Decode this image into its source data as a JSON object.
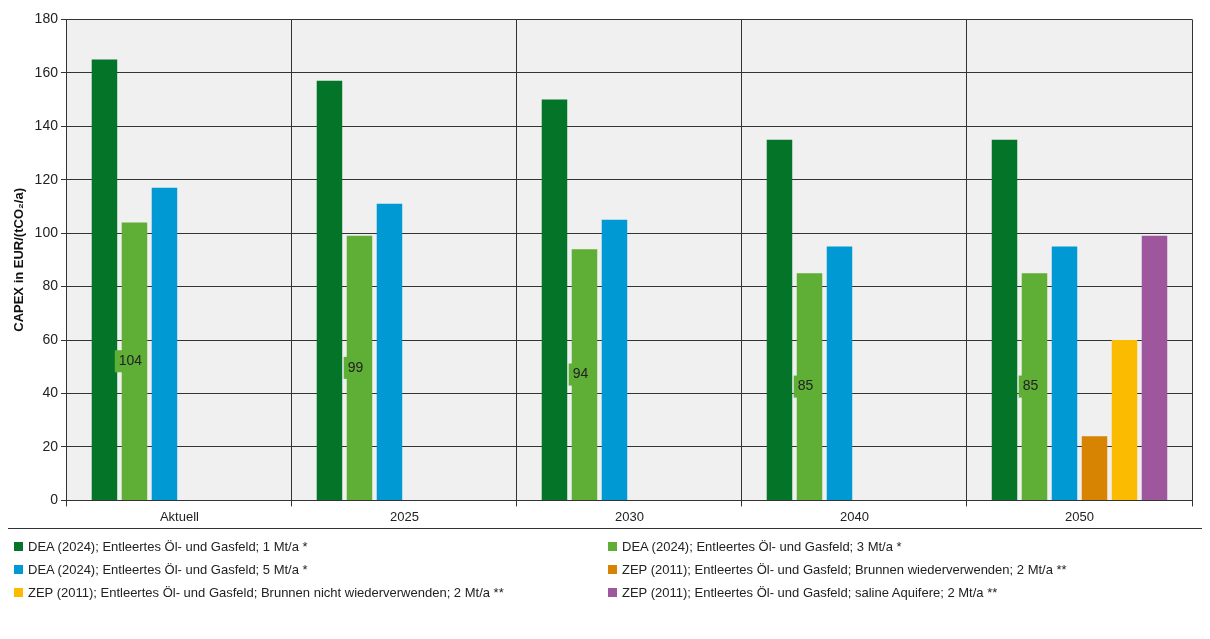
{
  "chart_data": {
    "type": "bar",
    "ylabel": "CAPEX in EUR/(tCO₂/a)",
    "categories": [
      "Aktuell",
      "2025",
      "2030",
      "2040",
      "2050"
    ],
    "series": [
      {
        "name": "DEA (2024); Entleertes Öl- und Gasfeld; 1 Mt/a *",
        "color": "#037428",
        "values": [
          165,
          157,
          150,
          135,
          135
        ]
      },
      {
        "name": "DEA (2024); Entleertes Öl- und Gasfeld; 3 Mt/a *",
        "color": "#5fae35",
        "values": [
          104,
          99,
          94,
          85,
          85
        ],
        "value_labels": [
          "104",
          "99",
          "94",
          "85",
          "85"
        ]
      },
      {
        "name": "DEA (2024); Entleertes Öl- und Gasfeld; 5 Mt/a *",
        "color": "#0199d4",
        "values": [
          117,
          111,
          105,
          95,
          95
        ]
      },
      {
        "name": "ZEP (2011); Entleertes Öl- und Gasfeld; Brunnen wiederverwenden; 2 Mt/a **",
        "color": "#d68401",
        "values": [
          null,
          null,
          null,
          null,
          24
        ]
      },
      {
        "name": "ZEP (2011); Entleertes Öl- und Gasfeld; Brunnen nicht wiederverwenden; 2 Mt/a **",
        "color": "#fbbb00",
        "values": [
          null,
          null,
          null,
          null,
          60
        ]
      },
      {
        "name": "ZEP (2011); Entleertes Öl- und Gasfeld; saline Aquifere; 2 Mt/a **",
        "color": "#9e579d",
        "values": [
          null,
          null,
          null,
          null,
          99
        ]
      }
    ],
    "ylim": [
      0,
      180
    ],
    "yticks": [
      0,
      20,
      40,
      60,
      80,
      100,
      120,
      140,
      160,
      180
    ],
    "grid": true,
    "legend": "bottom"
  }
}
